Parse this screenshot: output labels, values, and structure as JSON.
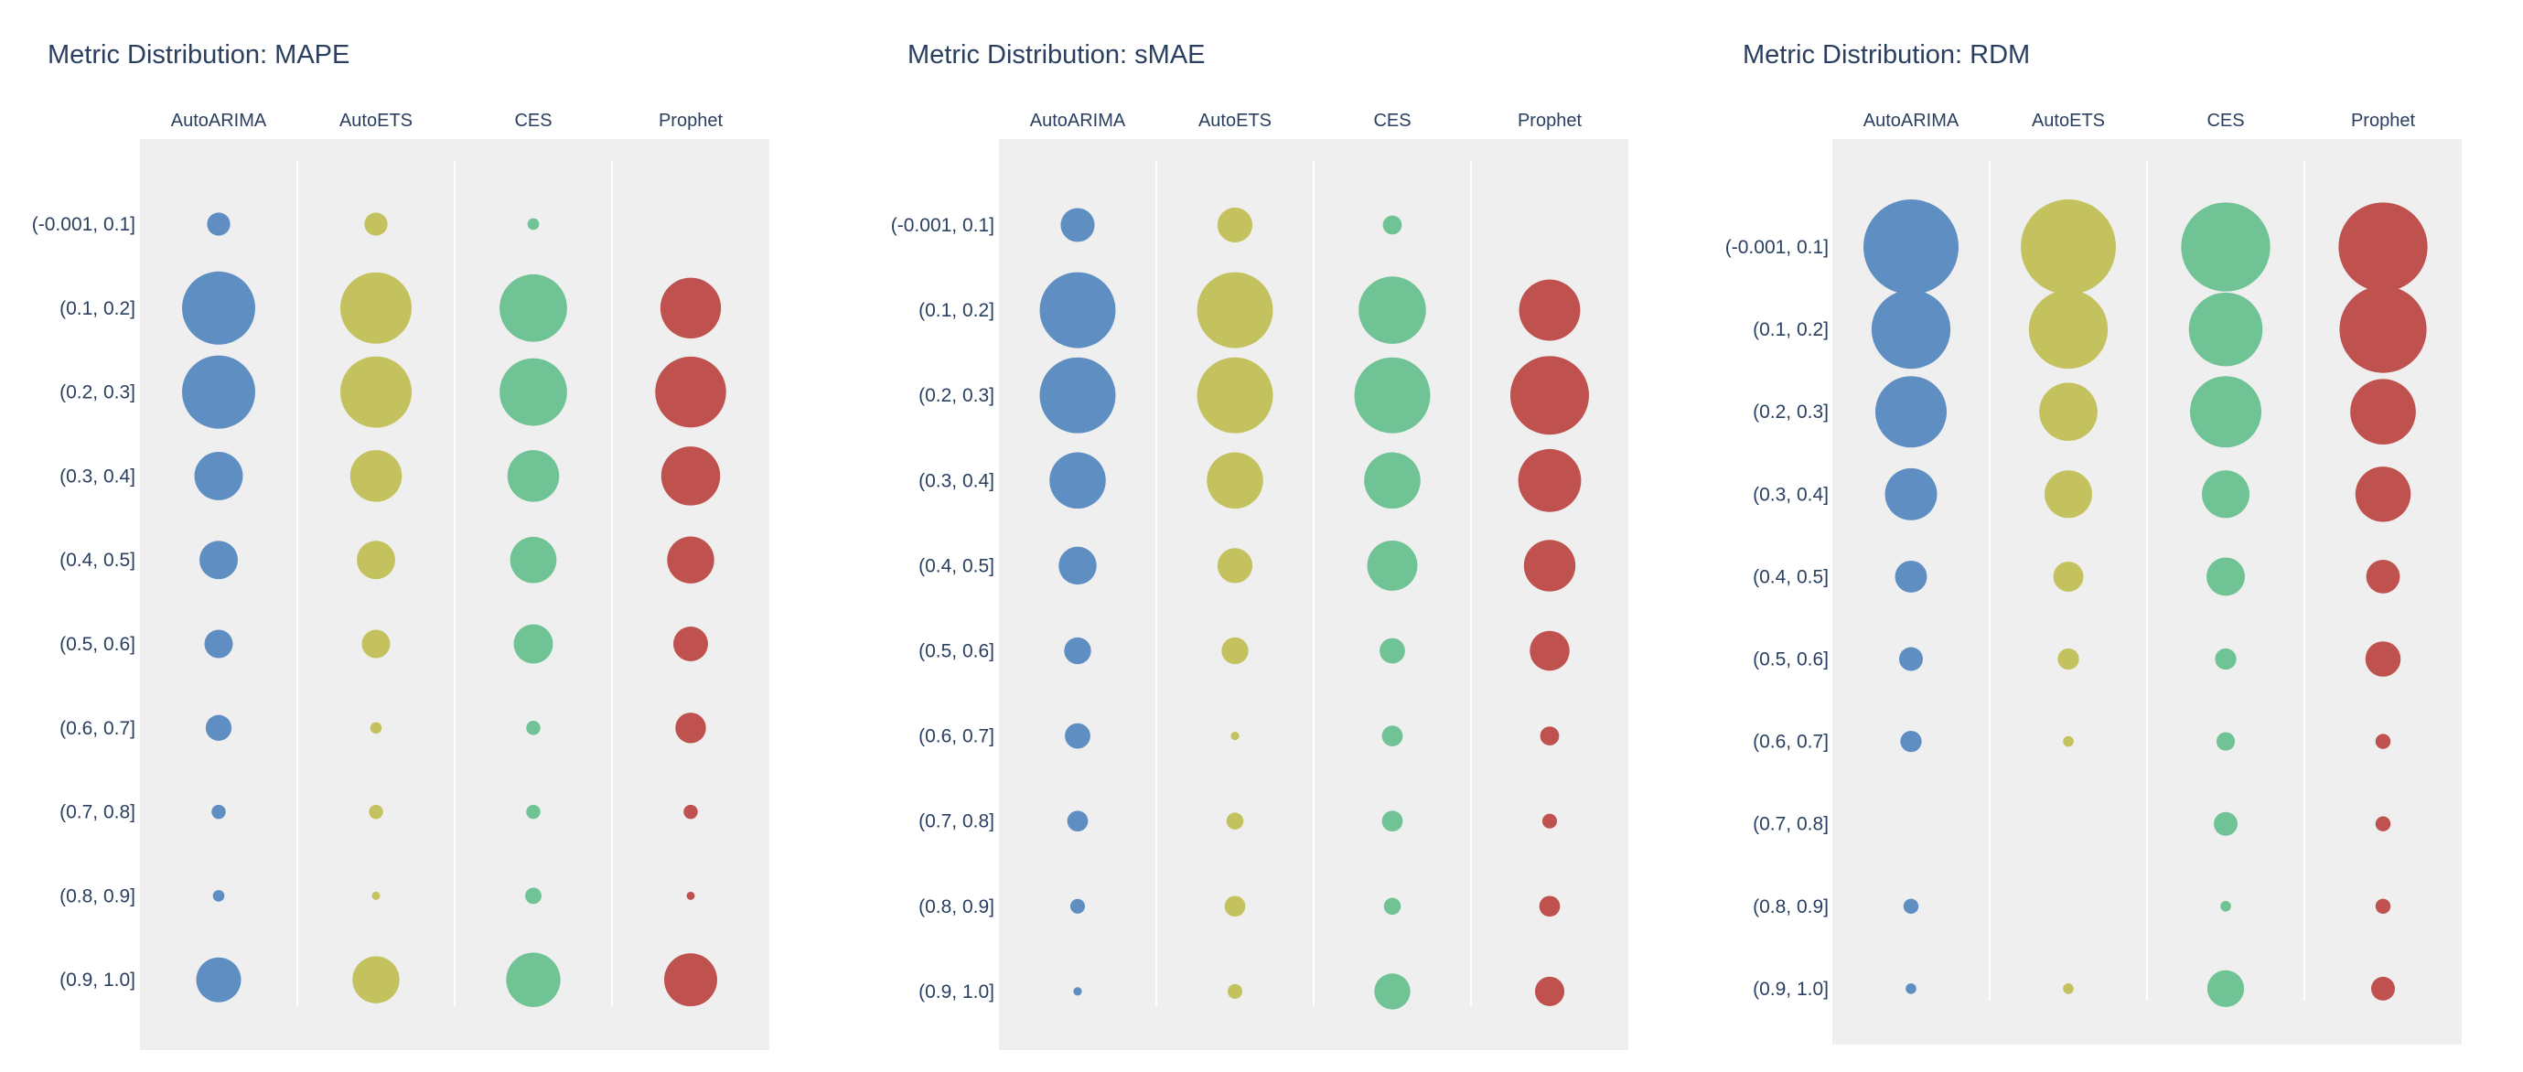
{
  "chart_data": [
    {
      "type": "bubble",
      "title": "Metric Distribution: MAPE",
      "columns": [
        "AutoARIMA",
        "AutoETS",
        "CES",
        "Prophet"
      ],
      "rows": [
        "(-0.001, 0.1]",
        "(0.1, 0.2]",
        "(0.2, 0.3]",
        "(0.3, 0.4]",
        "(0.4, 0.5]",
        "(0.5, 0.6]",
        "(0.6, 0.7]",
        "(0.7, 0.8]",
        "(0.8, 0.9]",
        "(0.9, 1.0]"
      ],
      "values": [
        [
          8,
          8,
          2,
          0
        ],
        [
          80,
          76,
          68,
          55
        ],
        [
          80,
          76,
          68,
          75
        ],
        [
          35,
          40,
          40,
          52
        ],
        [
          22,
          22,
          32,
          33
        ],
        [
          12,
          12,
          23,
          18
        ],
        [
          10,
          2,
          3,
          14
        ],
        [
          3,
          3,
          3,
          3
        ],
        [
          2,
          1,
          4,
          1
        ],
        [
          30,
          33,
          44,
          42
        ]
      ],
      "grid": false
    },
    {
      "type": "bubble",
      "title": "Metric Distribution: sMAE",
      "columns": [
        "AutoARIMA",
        "AutoETS",
        "CES",
        "Prophet"
      ],
      "rows": [
        "(-0.001, 0.1]",
        "(0.1, 0.2]",
        "(0.2, 0.3]",
        "(0.3, 0.4]",
        "(0.4, 0.5]",
        "(0.5, 0.6]",
        "(0.6, 0.7]",
        "(0.7, 0.8]",
        "(0.8, 0.9]",
        "(0.9, 1.0]"
      ],
      "values": [
        [
          16,
          17,
          5,
          0
        ],
        [
          80,
          80,
          63,
          52
        ],
        [
          80,
          80,
          80,
          86
        ],
        [
          44,
          44,
          44,
          55
        ],
        [
          20,
          17,
          35,
          37
        ],
        [
          10,
          10,
          9,
          22
        ],
        [
          9,
          1,
          6,
          5
        ],
        [
          6,
          4,
          6,
          3
        ],
        [
          3,
          6,
          4,
          6
        ],
        [
          1,
          3,
          18,
          12
        ]
      ],
      "grid": false
    },
    {
      "type": "bubble",
      "title": "Metric Distribution: RDM",
      "columns": [
        "AutoARIMA",
        "AutoETS",
        "CES",
        "Prophet"
      ],
      "rows": [
        "(-0.001, 0.1]",
        "(0.1, 0.2]",
        "(0.2, 0.3]",
        "(0.3, 0.4]",
        "(0.4, 0.5]",
        "(0.5, 0.6]",
        "(0.6, 0.7]",
        "(0.7, 0.8]",
        "(0.8, 0.9]",
        "(0.9, 1.0]"
      ],
      "values": [
        [
          80,
          80,
          70,
          70
        ],
        [
          55,
          55,
          48,
          67
        ],
        [
          45,
          30,
          45,
          38
        ],
        [
          24,
          20,
          20,
          27
        ],
        [
          9,
          8,
          13,
          10
        ],
        [
          5,
          4,
          4,
          11
        ],
        [
          4,
          1,
          3,
          2
        ],
        [
          0,
          0,
          5,
          2
        ],
        [
          2,
          0,
          1,
          2
        ],
        [
          1,
          1,
          12,
          5
        ]
      ],
      "grid": false
    }
  ],
  "colors": {
    "series": [
      "#5f8fc2",
      "#c4c25e",
      "#70c395",
      "#bf514f"
    ],
    "plot_background": "#efefef",
    "text": "#2a3f5f"
  }
}
